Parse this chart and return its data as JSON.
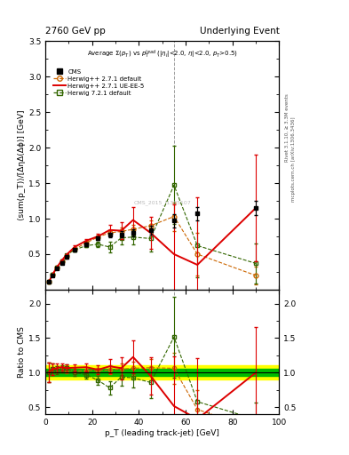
{
  "title_left": "2760 GeV pp",
  "title_right": "Underlying Event",
  "right_label1": "Rivet 3.1.10, ≥ 3.3M events",
  "right_label2": "mcplots.cern.ch [arXiv:1306.3436]",
  "watermark": "CMS_2015_I1385107",
  "ylabel_main": "⟨sum(p_T)⟩/[ΔηΔ(Δϕ)] [GeV]",
  "ylabel_ratio": "Ratio to CMS",
  "xlabel": "p_T (leading track-jet) [GeV]",
  "xlim": [
    0,
    100
  ],
  "ylim_main": [
    0,
    3.5
  ],
  "ylim_ratio": [
    0.4,
    2.2
  ],
  "yticks_main": [
    0.5,
    1.0,
    1.5,
    2.0,
    2.5,
    3.0,
    3.5
  ],
  "yticks_ratio": [
    0.5,
    1.0,
    1.5,
    2.0
  ],
  "cms_x": [
    1.5,
    3.0,
    5.0,
    7.0,
    9.0,
    12.5,
    17.5,
    22.5,
    27.5,
    32.5,
    37.5,
    45.0,
    55.0,
    65.0,
    90.0
  ],
  "cms_y": [
    0.11,
    0.2,
    0.3,
    0.38,
    0.46,
    0.56,
    0.64,
    0.72,
    0.77,
    0.78,
    0.8,
    0.84,
    0.97,
    1.07,
    1.15
  ],
  "cms_ey": [
    0.015,
    0.015,
    0.015,
    0.015,
    0.02,
    0.02,
    0.025,
    0.025,
    0.03,
    0.04,
    0.05,
    0.06,
    0.09,
    0.09,
    0.1
  ],
  "herwig271_x": [
    1.5,
    3.0,
    5.0,
    7.0,
    9.0,
    12.5,
    17.5,
    22.5,
    27.5,
    32.5,
    37.5,
    45.0,
    55.0,
    65.0,
    90.0
  ],
  "herwig271_y": [
    0.11,
    0.21,
    0.31,
    0.4,
    0.48,
    0.57,
    0.66,
    0.74,
    0.8,
    0.82,
    0.85,
    0.9,
    1.03,
    0.5,
    0.2
  ],
  "herwig271_ey": [
    0.005,
    0.005,
    0.008,
    0.008,
    0.01,
    0.01,
    0.015,
    0.02,
    0.04,
    0.05,
    0.06,
    0.08,
    0.2,
    0.3,
    0.12
  ],
  "herwig271ue_x": [
    1.5,
    3.0,
    5.0,
    7.0,
    9.0,
    12.5,
    17.5,
    22.5,
    27.5,
    32.5,
    37.5,
    45.0,
    55.0,
    65.0,
    90.0
  ],
  "herwig271ue_y": [
    0.11,
    0.21,
    0.32,
    0.41,
    0.49,
    0.6,
    0.69,
    0.75,
    0.84,
    0.83,
    0.98,
    0.8,
    0.5,
    0.35,
    1.15
  ],
  "herwig271ue_ey": [
    0.005,
    0.005,
    0.008,
    0.01,
    0.015,
    0.02,
    0.025,
    0.04,
    0.07,
    0.12,
    0.18,
    0.22,
    0.7,
    0.95,
    0.75
  ],
  "herwig721_x": [
    1.5,
    3.0,
    5.0,
    7.0,
    9.0,
    12.5,
    17.5,
    22.5,
    27.5,
    32.5,
    37.5,
    45.0,
    55.0,
    65.0,
    90.0
  ],
  "herwig721_y": [
    0.11,
    0.21,
    0.31,
    0.4,
    0.49,
    0.56,
    0.62,
    0.64,
    0.6,
    0.73,
    0.74,
    0.72,
    1.47,
    0.62,
    0.37
  ],
  "herwig721_ey": [
    0.005,
    0.005,
    0.008,
    0.01,
    0.015,
    0.02,
    0.025,
    0.04,
    0.07,
    0.09,
    0.1,
    0.18,
    0.55,
    0.45,
    0.28
  ],
  "color_cms": "#000000",
  "color_herwig271": "#cc6600",
  "color_herwig271ue": "#dd0000",
  "color_herwig721": "#336600",
  "band_yellow": "#ffff00",
  "band_green": "#00bb00"
}
